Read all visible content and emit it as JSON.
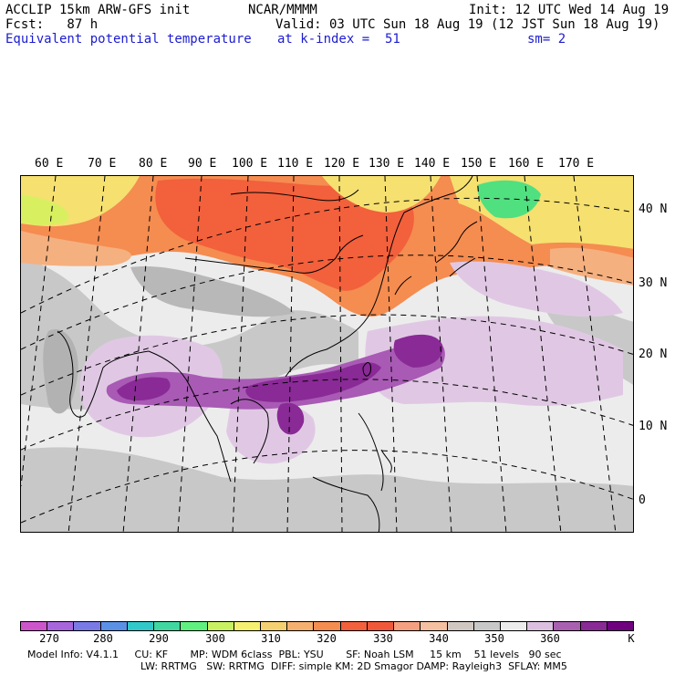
{
  "header": {
    "line1_left": "ACCLIP 15km ARW-GFS init",
    "line1_center": "NCAR/MMMM",
    "line1_right": "Init: 12 UTC Wed 14 Aug 19",
    "line2_left": "Fcst:   87 h",
    "line2_right": "Valid: 03 UTC Sun 18 Aug 19 (12 JST Sun 18 Aug 19)",
    "line3_left": "Equivalent potential temperature",
    "line3_center": "at k-index =  51",
    "line3_right": "sm= 2"
  },
  "map": {
    "longitude_labels": [
      "60 E",
      "70 E",
      "80 E",
      "90 E",
      "100 E",
      "110 E",
      "120 E",
      "130 E",
      "140 E",
      "150 E",
      "160 E",
      "170 E"
    ],
    "latitude_labels": [
      "40 N",
      "30 N",
      "20 N",
      "10 N",
      "0"
    ],
    "colors": {
      "ocean_background": "#ececec",
      "gray_band": "#c8c8c8",
      "mid_gray": "#b2b2b2",
      "light_purple": "#e0c8e4",
      "purple": "#a85ab4",
      "dark_purple": "#8a2a96",
      "orange_red": "#f2603c",
      "orange": "#f58c50",
      "peach": "#f5b080",
      "yellow": "#f5e070",
      "yellow_green": "#d8f060",
      "green": "#50e080"
    }
  },
  "colorbar": {
    "colors": [
      "#cc55cc",
      "#a866dd",
      "#7a7ae6",
      "#5a90e6",
      "#30c8c8",
      "#40d8a0",
      "#60f080",
      "#c8f060",
      "#f5f070",
      "#f5d070",
      "#f5b070",
      "#f58c50",
      "#f2603c",
      "#f0583a",
      "#f5a080",
      "#f5c0a0",
      "#d0c8c0",
      "#c8c8c8",
      "#ececec",
      "#dcc0e0",
      "#aa60b0",
      "#8a2a96",
      "#700080"
    ],
    "ticks": [
      "270",
      "280",
      "290",
      "300",
      "310",
      "320",
      "330",
      "340",
      "350",
      "360"
    ],
    "unit": "K"
  },
  "footer": {
    "line1": "Model Info: V4.1.1     CU: KF       MP: WDM 6class  PBL: YSU       SF: Noah LSM     15 km    51 levels   90 sec",
    "line2": "LW: RRTMG   SW: RRTMG  DIFF: simple KM: 2D Smagor DAMP: Rayleigh3  SFLAY: MM5"
  }
}
